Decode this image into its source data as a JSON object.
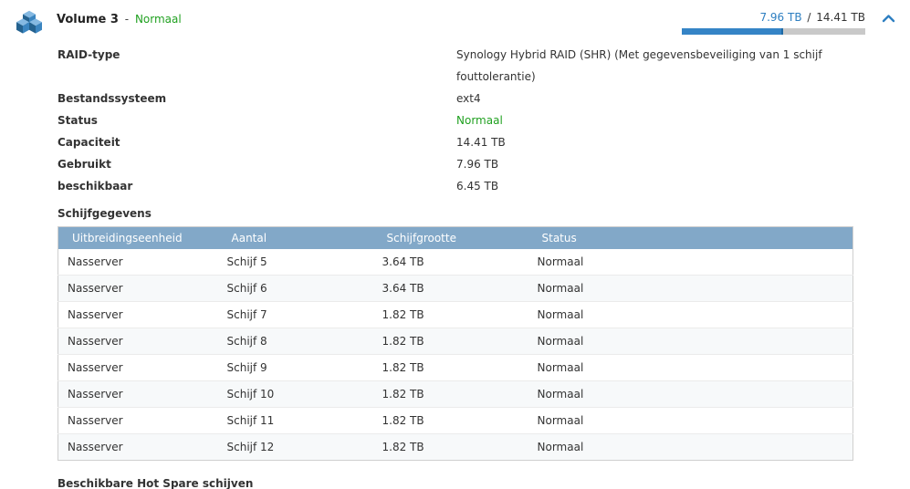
{
  "colors": {
    "status_green": "#21a121",
    "link_blue": "#2e7fc1",
    "table_header_bg": "#82a8c8",
    "bar_fill_blue": "#3584c6",
    "bar_track_gray": "#c9c9c9"
  },
  "header": {
    "title": "Volume 3",
    "separator": "-",
    "status": "Normaal",
    "used": "7.96 TB",
    "divider": "/",
    "total": "14.41 TB",
    "usage_percent": 55.2
  },
  "details": [
    {
      "label": "RAID-type",
      "value": "Synology Hybrid RAID (SHR) (Met gegevensbeveiliging van 1 schijf fouttolerantie)"
    },
    {
      "label": "Bestandssysteem",
      "value": "ext4"
    },
    {
      "label": "Status",
      "value": "Normaal"
    },
    {
      "label": "Capaciteit",
      "value": "14.41 TB"
    },
    {
      "label": "Gebruikt",
      "value": "7.96 TB"
    },
    {
      "label": "beschikbaar",
      "value": "6.45 TB"
    }
  ],
  "disk_section": {
    "title": "Schijfgegevens",
    "headers": [
      "Uitbreidingseenheid",
      "Aantal",
      "Schijfgrootte",
      "Status"
    ],
    "rows": [
      [
        "Nasserver",
        "Schijf 5",
        "3.64 TB",
        "Normaal"
      ],
      [
        "Nasserver",
        "Schijf 6",
        "3.64 TB",
        "Normaal"
      ],
      [
        "Nasserver",
        "Schijf 7",
        "1.82 TB",
        "Normaal"
      ],
      [
        "Nasserver",
        "Schijf 8",
        "1.82 TB",
        "Normaal"
      ],
      [
        "Nasserver",
        "Schijf 9",
        "1.82 TB",
        "Normaal"
      ],
      [
        "Nasserver",
        "Schijf 10",
        "1.82 TB",
        "Normaal"
      ],
      [
        "Nasserver",
        "Schijf 11",
        "1.82 TB",
        "Normaal"
      ],
      [
        "Nasserver",
        "Schijf 12",
        "1.82 TB",
        "Normaal"
      ]
    ]
  },
  "footer": {
    "hot_spare_title": "Beschikbare Hot Spare schijven"
  }
}
